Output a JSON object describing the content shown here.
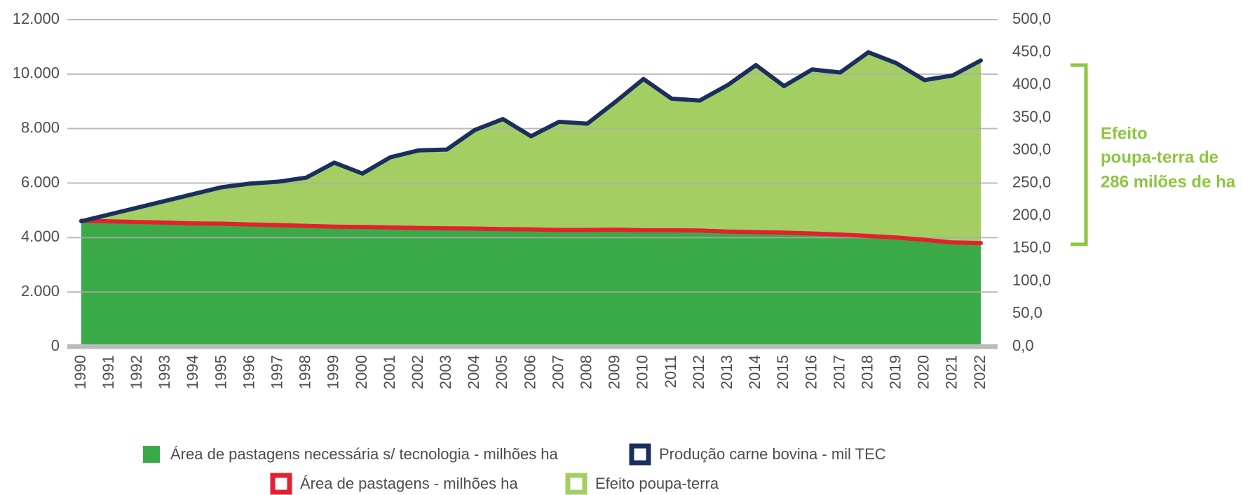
{
  "chart_data": {
    "type": "area",
    "categories": [
      "1990",
      "1991",
      "1992",
      "1993",
      "1994",
      "1995",
      "1996",
      "1997",
      "1998",
      "1999",
      "2000",
      "2001",
      "2002",
      "2003",
      "2004",
      "2005",
      "2006",
      "2007",
      "2008",
      "2009",
      "2010",
      "2011",
      "2012",
      "2013",
      "2014",
      "2015",
      "2016",
      "2017",
      "2018",
      "2019",
      "2020",
      "2021",
      "2022"
    ],
    "series": [
      {
        "name": "Área de pastagens necessária s/ tecnologia - milhões ha",
        "kind": "area",
        "axis": "y2",
        "color": "#3aaa48",
        "values": [
          192.5,
          191.5,
          190.4,
          189.6,
          188.3,
          187.9,
          186.7,
          185.8,
          184.6,
          183.3,
          182.9,
          182.1,
          181.3,
          180.8,
          180.4,
          179.6,
          179.2,
          178.3,
          178.3,
          178.8,
          177.9,
          177.9,
          177.5,
          175.8,
          175.0,
          174.2,
          172.9,
          171.3,
          169.2,
          166.7,
          163.3,
          159.2,
          158.3
        ]
      },
      {
        "name": "Produção carne bovina - mil TEC",
        "kind": "line",
        "axis": "y",
        "color": "#1b2f5e",
        "values": [
          4600,
          4850,
          5100,
          5350,
          5600,
          5850,
          5980,
          6050,
          6200,
          6750,
          6350,
          6950,
          7200,
          7230,
          7950,
          8350,
          7720,
          8250,
          8180,
          8980,
          9820,
          9100,
          9030,
          9600,
          10330,
          9560,
          10170,
          10060,
          10800,
          10400,
          9780,
          9950,
          10500
        ]
      },
      {
        "name": "Área de pastagens - milhões ha",
        "kind": "line",
        "axis": "y2",
        "color": "#e5202e",
        "values": [
          192.5,
          191.5,
          190.4,
          189.6,
          188.3,
          187.9,
          186.7,
          185.8,
          184.6,
          183.3,
          182.9,
          182.1,
          181.3,
          180.8,
          180.4,
          179.6,
          179.2,
          178.3,
          178.3,
          178.8,
          177.9,
          177.9,
          177.5,
          175.8,
          175.0,
          174.2,
          172.9,
          171.3,
          169.2,
          166.7,
          163.3,
          159.2,
          158.3
        ]
      },
      {
        "name": "Efeito poupa-terra",
        "kind": "area",
        "axis": "y2",
        "color": "#a3cf62",
        "values": [
          191.7,
          202.1,
          212.5,
          222.9,
          233.3,
          243.8,
          249.2,
          252.1,
          258.3,
          281.3,
          264.6,
          289.6,
          300.0,
          301.3,
          331.3,
          347.9,
          321.7,
          343.8,
          340.8,
          374.2,
          409.2,
          379.2,
          376.3,
          400.0,
          430.4,
          398.3,
          423.8,
          419.2,
          450.0,
          433.3,
          407.5,
          414.6,
          437.5
        ]
      }
    ],
    "ylim": [
      0,
      12000
    ],
    "yticks": [
      0,
      {
        "value": 2000,
        "label": "2.000"
      },
      {
        "value": 4000,
        "label": "4.000"
      },
      {
        "value": 6000,
        "label": "6.000"
      },
      {
        "value": 8000,
        "label": "8.000"
      },
      {
        "value": 10000,
        "label": "10.000"
      },
      {
        "value": 12000,
        "label": "12.000"
      }
    ],
    "y2lim": [
      0,
      500
    ],
    "y2ticks": [
      {
        "value": 0,
        "label": "0,0"
      },
      {
        "value": 50,
        "label": "50,0"
      },
      {
        "value": 100,
        "label": "100,0"
      },
      {
        "value": 150,
        "label": "150,0"
      },
      {
        "value": 200,
        "label": "200,0"
      },
      {
        "value": 250,
        "label": "250,0"
      },
      {
        "value": 300,
        "label": "300,0"
      },
      {
        "value": 350,
        "label": "350,0"
      },
      {
        "value": 400,
        "label": "400,0"
      },
      {
        "value": 450,
        "label": "450,0"
      },
      {
        "value": 500,
        "label": "500,0"
      }
    ],
    "grid": true,
    "annotation": [
      "Efeito",
      "poupa-terra de",
      "286 milões de ha"
    ]
  }
}
